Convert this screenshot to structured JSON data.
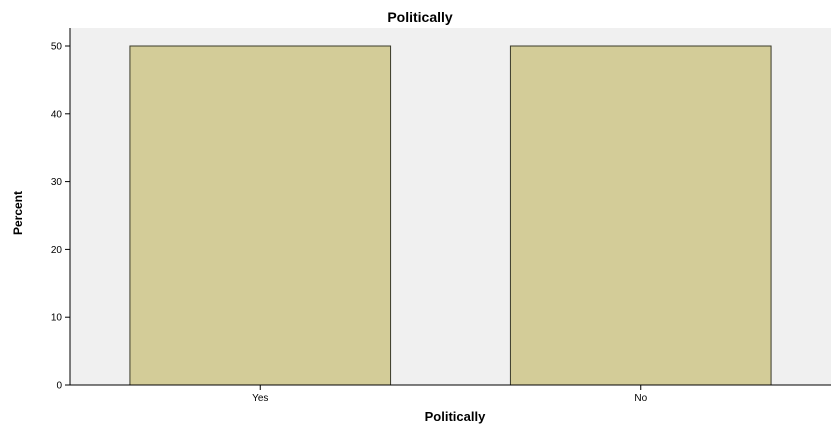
{
  "chart_data": {
    "type": "bar",
    "title": "Politically",
    "xlabel": "Politically",
    "ylabel": "Percent",
    "categories": [
      "Yes",
      "No"
    ],
    "values": [
      50,
      50
    ],
    "ylim": [
      0,
      50
    ],
    "yticks": [
      0,
      10,
      20,
      30,
      40,
      50
    ],
    "grid": false,
    "legend": "none",
    "colors": {
      "bar_fill": "#d3cc98",
      "bar_stroke": "#3a3a2a",
      "plot_background": "#f0f0f0",
      "axis": "#000000"
    }
  }
}
